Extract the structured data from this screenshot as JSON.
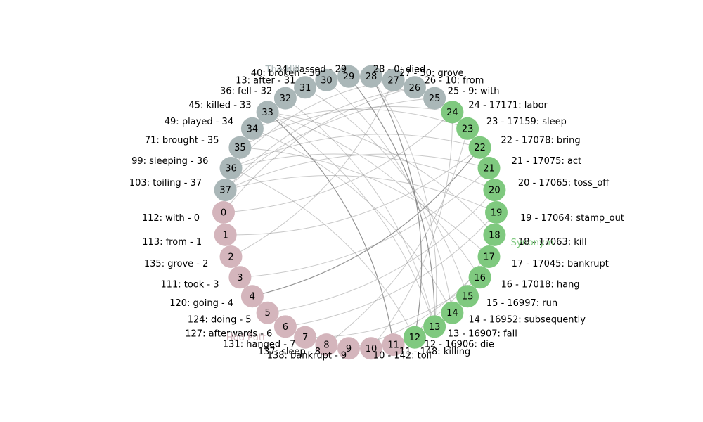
{
  "diagram": {
    "type": "circular-network",
    "group_colors": {
      "hod_putt": "#d4b5bc",
      "synonym": "#7fc97f",
      "the_hill": "#aab7b8"
    },
    "edge_color": "#888888",
    "groups": [
      {
        "key": "hod_putt",
        "label": "Hod Putt"
      },
      {
        "key": "synonym",
        "label": "Synonym"
      },
      {
        "key": "the_hill",
        "label": "The Hill"
      }
    ],
    "nodes": [
      {
        "id": "0",
        "group": "hod_putt",
        "label": "112: with - 0"
      },
      {
        "id": "1",
        "group": "hod_putt",
        "label": "113: from - 1"
      },
      {
        "id": "2",
        "group": "hod_putt",
        "label": "135: grove - 2"
      },
      {
        "id": "3",
        "group": "hod_putt",
        "label": "111: took - 3"
      },
      {
        "id": "4",
        "group": "hod_putt",
        "label": "120: going - 4"
      },
      {
        "id": "5",
        "group": "hod_putt",
        "label": "124: doing - 5"
      },
      {
        "id": "6",
        "group": "hod_putt",
        "label": "127: afterwards - 6"
      },
      {
        "id": "7",
        "group": "hod_putt",
        "label": "131: hanged - 7"
      },
      {
        "id": "8",
        "group": "hod_putt",
        "label": "137: sleep - 8"
      },
      {
        "id": "9",
        "group": "hod_putt",
        "label": "138: bankrupt - 9"
      },
      {
        "id": "10",
        "group": "hod_putt",
        "label": "10 - 142: toil"
      },
      {
        "id": "11",
        "group": "hod_putt",
        "label": "11 - 148: killing"
      },
      {
        "id": "12",
        "group": "synonym",
        "label": "12 - 16906: die"
      },
      {
        "id": "13",
        "group": "synonym",
        "label": "13 - 16907: fail"
      },
      {
        "id": "14",
        "group": "synonym",
        "label": "14 - 16952: subsequently"
      },
      {
        "id": "15",
        "group": "synonym",
        "label": "15 - 16997: run"
      },
      {
        "id": "16",
        "group": "synonym",
        "label": "16 - 17018: hang"
      },
      {
        "id": "17",
        "group": "synonym",
        "label": "17 - 17045: bankrupt"
      },
      {
        "id": "18",
        "group": "synonym",
        "label": "18 - 17063: kill"
      },
      {
        "id": "19",
        "group": "synonym",
        "label": "19 - 17064: stamp_out"
      },
      {
        "id": "20",
        "group": "synonym",
        "label": "20 - 17065: toss_off"
      },
      {
        "id": "21",
        "group": "synonym",
        "label": "21 - 17075: act"
      },
      {
        "id": "22",
        "group": "synonym",
        "label": "22 - 17078: bring"
      },
      {
        "id": "23",
        "group": "synonym",
        "label": "23 - 17159: sleep"
      },
      {
        "id": "24",
        "group": "synonym",
        "label": "24 - 17171: labor"
      },
      {
        "id": "25",
        "group": "the_hill",
        "label": "25 - 9: with"
      },
      {
        "id": "26",
        "group": "the_hill",
        "label": "26 - 10: from"
      },
      {
        "id": "27",
        "group": "the_hill",
        "label": "27 - 50: grove"
      },
      {
        "id": "28",
        "group": "the_hill",
        "label": "28 - 0: died"
      },
      {
        "id": "29",
        "group": "the_hill",
        "label": "34: passed - 29"
      },
      {
        "id": "30",
        "group": "the_hill",
        "label": "40: broken - 30"
      },
      {
        "id": "31",
        "group": "the_hill",
        "label": "13: after - 31"
      },
      {
        "id": "32",
        "group": "the_hill",
        "label": "36: fell - 32"
      },
      {
        "id": "33",
        "group": "the_hill",
        "label": "45: killed - 33"
      },
      {
        "id": "34",
        "group": "the_hill",
        "label": "49: played - 34"
      },
      {
        "id": "35",
        "group": "the_hill",
        "label": "71: brought - 35"
      },
      {
        "id": "36",
        "group": "the_hill",
        "label": "99: sleeping - 36"
      },
      {
        "id": "37",
        "group": "the_hill",
        "label": "103: toiling - 37"
      }
    ],
    "edges": [
      [
        "0",
        "24"
      ],
      [
        "1",
        "22"
      ],
      [
        "2",
        "27"
      ],
      [
        "3",
        "21"
      ],
      [
        "4",
        "22"
      ],
      [
        "5",
        "20"
      ],
      [
        "6",
        "19"
      ],
      [
        "7",
        "16"
      ],
      [
        "8",
        "23"
      ],
      [
        "9",
        "17"
      ],
      [
        "10",
        "24"
      ],
      [
        "11",
        "18"
      ],
      [
        "11",
        "33"
      ],
      [
        "12",
        "28"
      ],
      [
        "12",
        "36"
      ],
      [
        "13",
        "28"
      ],
      [
        "13",
        "29"
      ],
      [
        "13",
        "32"
      ],
      [
        "13",
        "33"
      ],
      [
        "14",
        "30"
      ],
      [
        "14",
        "34"
      ],
      [
        "15",
        "31"
      ],
      [
        "16",
        "33"
      ],
      [
        "17",
        "35"
      ],
      [
        "18",
        "33"
      ],
      [
        "19",
        "37"
      ],
      [
        "20",
        "36"
      ],
      [
        "21",
        "37"
      ],
      [
        "22",
        "36"
      ],
      [
        "23",
        "34"
      ],
      [
        "24",
        "35"
      ],
      [
        "25",
        "37"
      ],
      [
        "26",
        "37"
      ],
      [
        "26",
        "0"
      ],
      [
        "27",
        "36"
      ]
    ],
    "heavy_edges": [
      [
        "4",
        "22"
      ],
      [
        "11",
        "33"
      ],
      [
        "12",
        "28"
      ],
      [
        "13",
        "29"
      ]
    ]
  }
}
